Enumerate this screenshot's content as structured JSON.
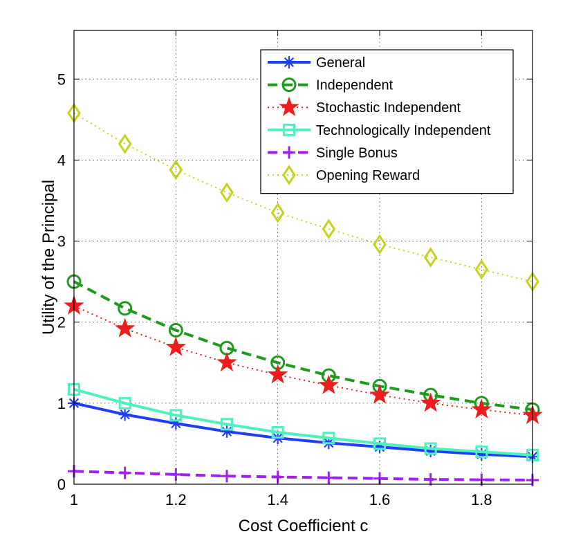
{
  "chart_data": {
    "type": "line",
    "xlabel": "Cost Coefficient c",
    "ylabel": "Utility of the Principal",
    "xlim": [
      1,
      1.9
    ],
    "ylim": [
      0,
      5.6
    ],
    "xticks": [
      1,
      1.2,
      1.4,
      1.6,
      1.8
    ],
    "xtick_labels": [
      "1",
      "1.2",
      "1.4",
      "1.6",
      "1.8"
    ],
    "yticks": [
      0,
      1,
      2,
      3,
      4,
      5
    ],
    "ytick_labels": [
      "0",
      "1",
      "2",
      "3",
      "4",
      "5"
    ],
    "grid": true,
    "legend_position": "top-right",
    "x": [
      1.0,
      1.1,
      1.2,
      1.3,
      1.4,
      1.5,
      1.6,
      1.7,
      1.8,
      1.9
    ],
    "series": [
      {
        "name": "General",
        "color": "#1f3ff5",
        "line_style": "solid",
        "marker": "asterisk",
        "values": [
          1.0,
          0.86,
          0.75,
          0.65,
          0.57,
          0.51,
          0.46,
          0.41,
          0.37,
          0.34
        ]
      },
      {
        "name": "Independent",
        "color": "#1e9a1e",
        "line_style": "dashed",
        "marker": "circle",
        "values": [
          2.5,
          2.17,
          1.9,
          1.68,
          1.5,
          1.34,
          1.21,
          1.1,
          1.0,
          0.92
        ]
      },
      {
        "name": "Stochastic Independent",
        "color": "#ee1c1c",
        "line_style": "dotted",
        "marker": "star",
        "values": [
          2.2,
          1.92,
          1.69,
          1.5,
          1.35,
          1.22,
          1.1,
          1.0,
          0.92,
          0.85
        ]
      },
      {
        "name": "Technologically Independent",
        "color": "#4ff0c0",
        "line_style": "solid",
        "marker": "square",
        "values": [
          1.17,
          1.0,
          0.85,
          0.74,
          0.64,
          0.57,
          0.5,
          0.44,
          0.4,
          0.36
        ]
      },
      {
        "name": "Single Bonus",
        "color": "#a020f0",
        "line_style": "dashed",
        "marker": "plus",
        "values": [
          0.16,
          0.14,
          0.12,
          0.1,
          0.09,
          0.08,
          0.07,
          0.06,
          0.055,
          0.05
        ]
      },
      {
        "name": "Opening Reward",
        "color": "#c8d21e",
        "line_style": "dotted",
        "marker": "diamond",
        "values": [
          4.58,
          4.2,
          3.88,
          3.6,
          3.35,
          3.15,
          2.96,
          2.8,
          2.65,
          2.5
        ]
      }
    ]
  }
}
